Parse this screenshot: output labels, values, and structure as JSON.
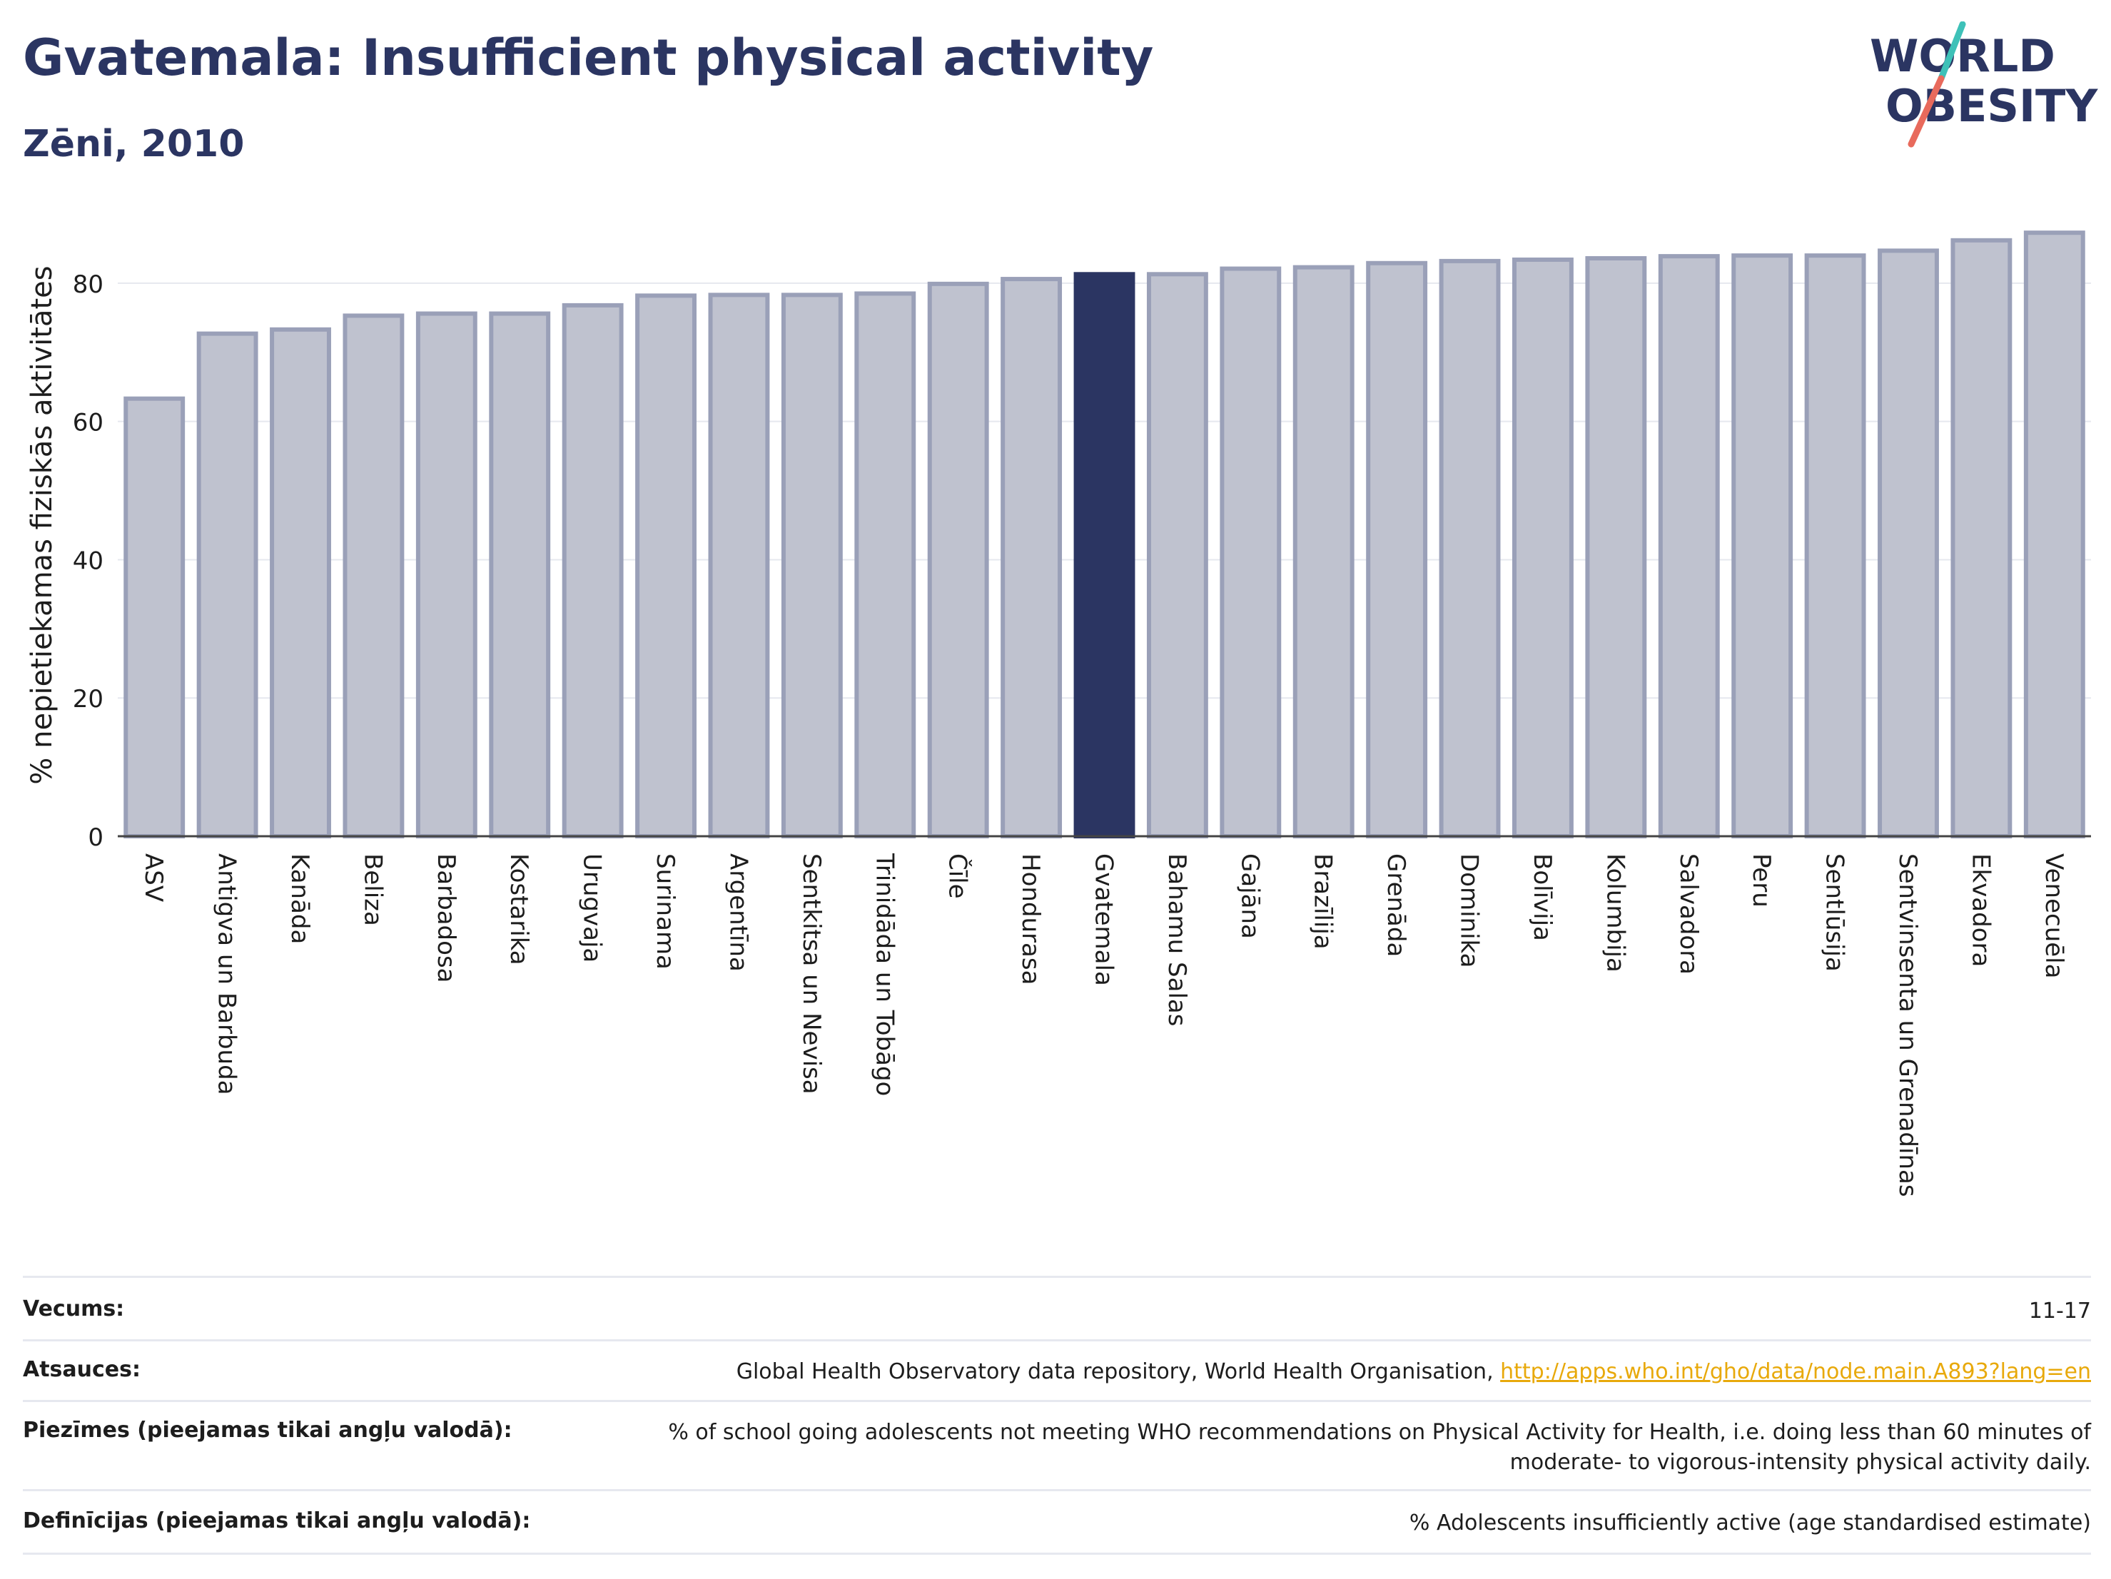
{
  "header": {
    "title": "Gvatemala: Insufficient physical activity",
    "subtitle": "Zēni, 2010"
  },
  "logo": {
    "line1": "WORLD",
    "line2": "OBESITY"
  },
  "colors": {
    "bar": "#bfc2cf",
    "bar_border": "#9aa0b8",
    "highlight": "#2b3562",
    "accent_teal": "#3ec1b8",
    "accent_red": "#e86a5c",
    "link": "#e8a90b"
  },
  "chart_data": {
    "type": "bar",
    "ylabel": "% nepietiekamas fiziskās aktivitātes",
    "xlabel": "",
    "ylim": [
      0,
      90
    ],
    "yticks": [
      0,
      20,
      40,
      60,
      80
    ],
    "grid": true,
    "highlight": "Gvatemala",
    "categories": [
      "ASV",
      "Antigva un Barbuda",
      "Kanāda",
      "Beliza",
      "Barbadosa",
      "Kostarika",
      "Urugvaja",
      "Surinama",
      "Argentīna",
      "Sentkitsa un Nevisa",
      "Trinidāda un Tobāgo",
      "Čīle",
      "Hondurasa",
      "Gvatemala",
      "Bahamu Salas",
      "Gajāna",
      "Brazīlija",
      "Grenāda",
      "Dominika",
      "Bolīvija",
      "Kolumbija",
      "Salvadora",
      "Peru",
      "Sentlūsija",
      "Sentvinsenta un Grenadīnas",
      "Ekvadora",
      "Venecuēla"
    ],
    "values": [
      63.3,
      72.7,
      73.3,
      75.3,
      75.6,
      75.6,
      76.8,
      78.2,
      78.3,
      78.3,
      78.5,
      79.9,
      80.6,
      81.3,
      81.3,
      82.1,
      82.3,
      82.9,
      83.2,
      83.4,
      83.6,
      83.9,
      84.0,
      84.0,
      84.7,
      86.2,
      87.3
    ]
  },
  "meta": {
    "age_label": "Vecums:",
    "age_value": "11-17",
    "refs_label": "Atsauces:",
    "refs_text": "Global Health Observatory data repository, World Health Organisation, ",
    "refs_link": "http://apps.who.int/gho/data/node.main.A893?lang=en",
    "notes_label": "Piezīmes (pieejamas tikai angļu valodā):",
    "notes_value": "% of school going adolescents not meeting WHO recommendations on Physical Activity for Health, i.e. doing less than 60 minutes of moderate- to vigorous-intensity physical activity daily.",
    "defs_label": "Definīcijas (pieejamas tikai angļu valodā):",
    "defs_value": "% Adolescents insufficiently active (age standardised estimate)"
  }
}
